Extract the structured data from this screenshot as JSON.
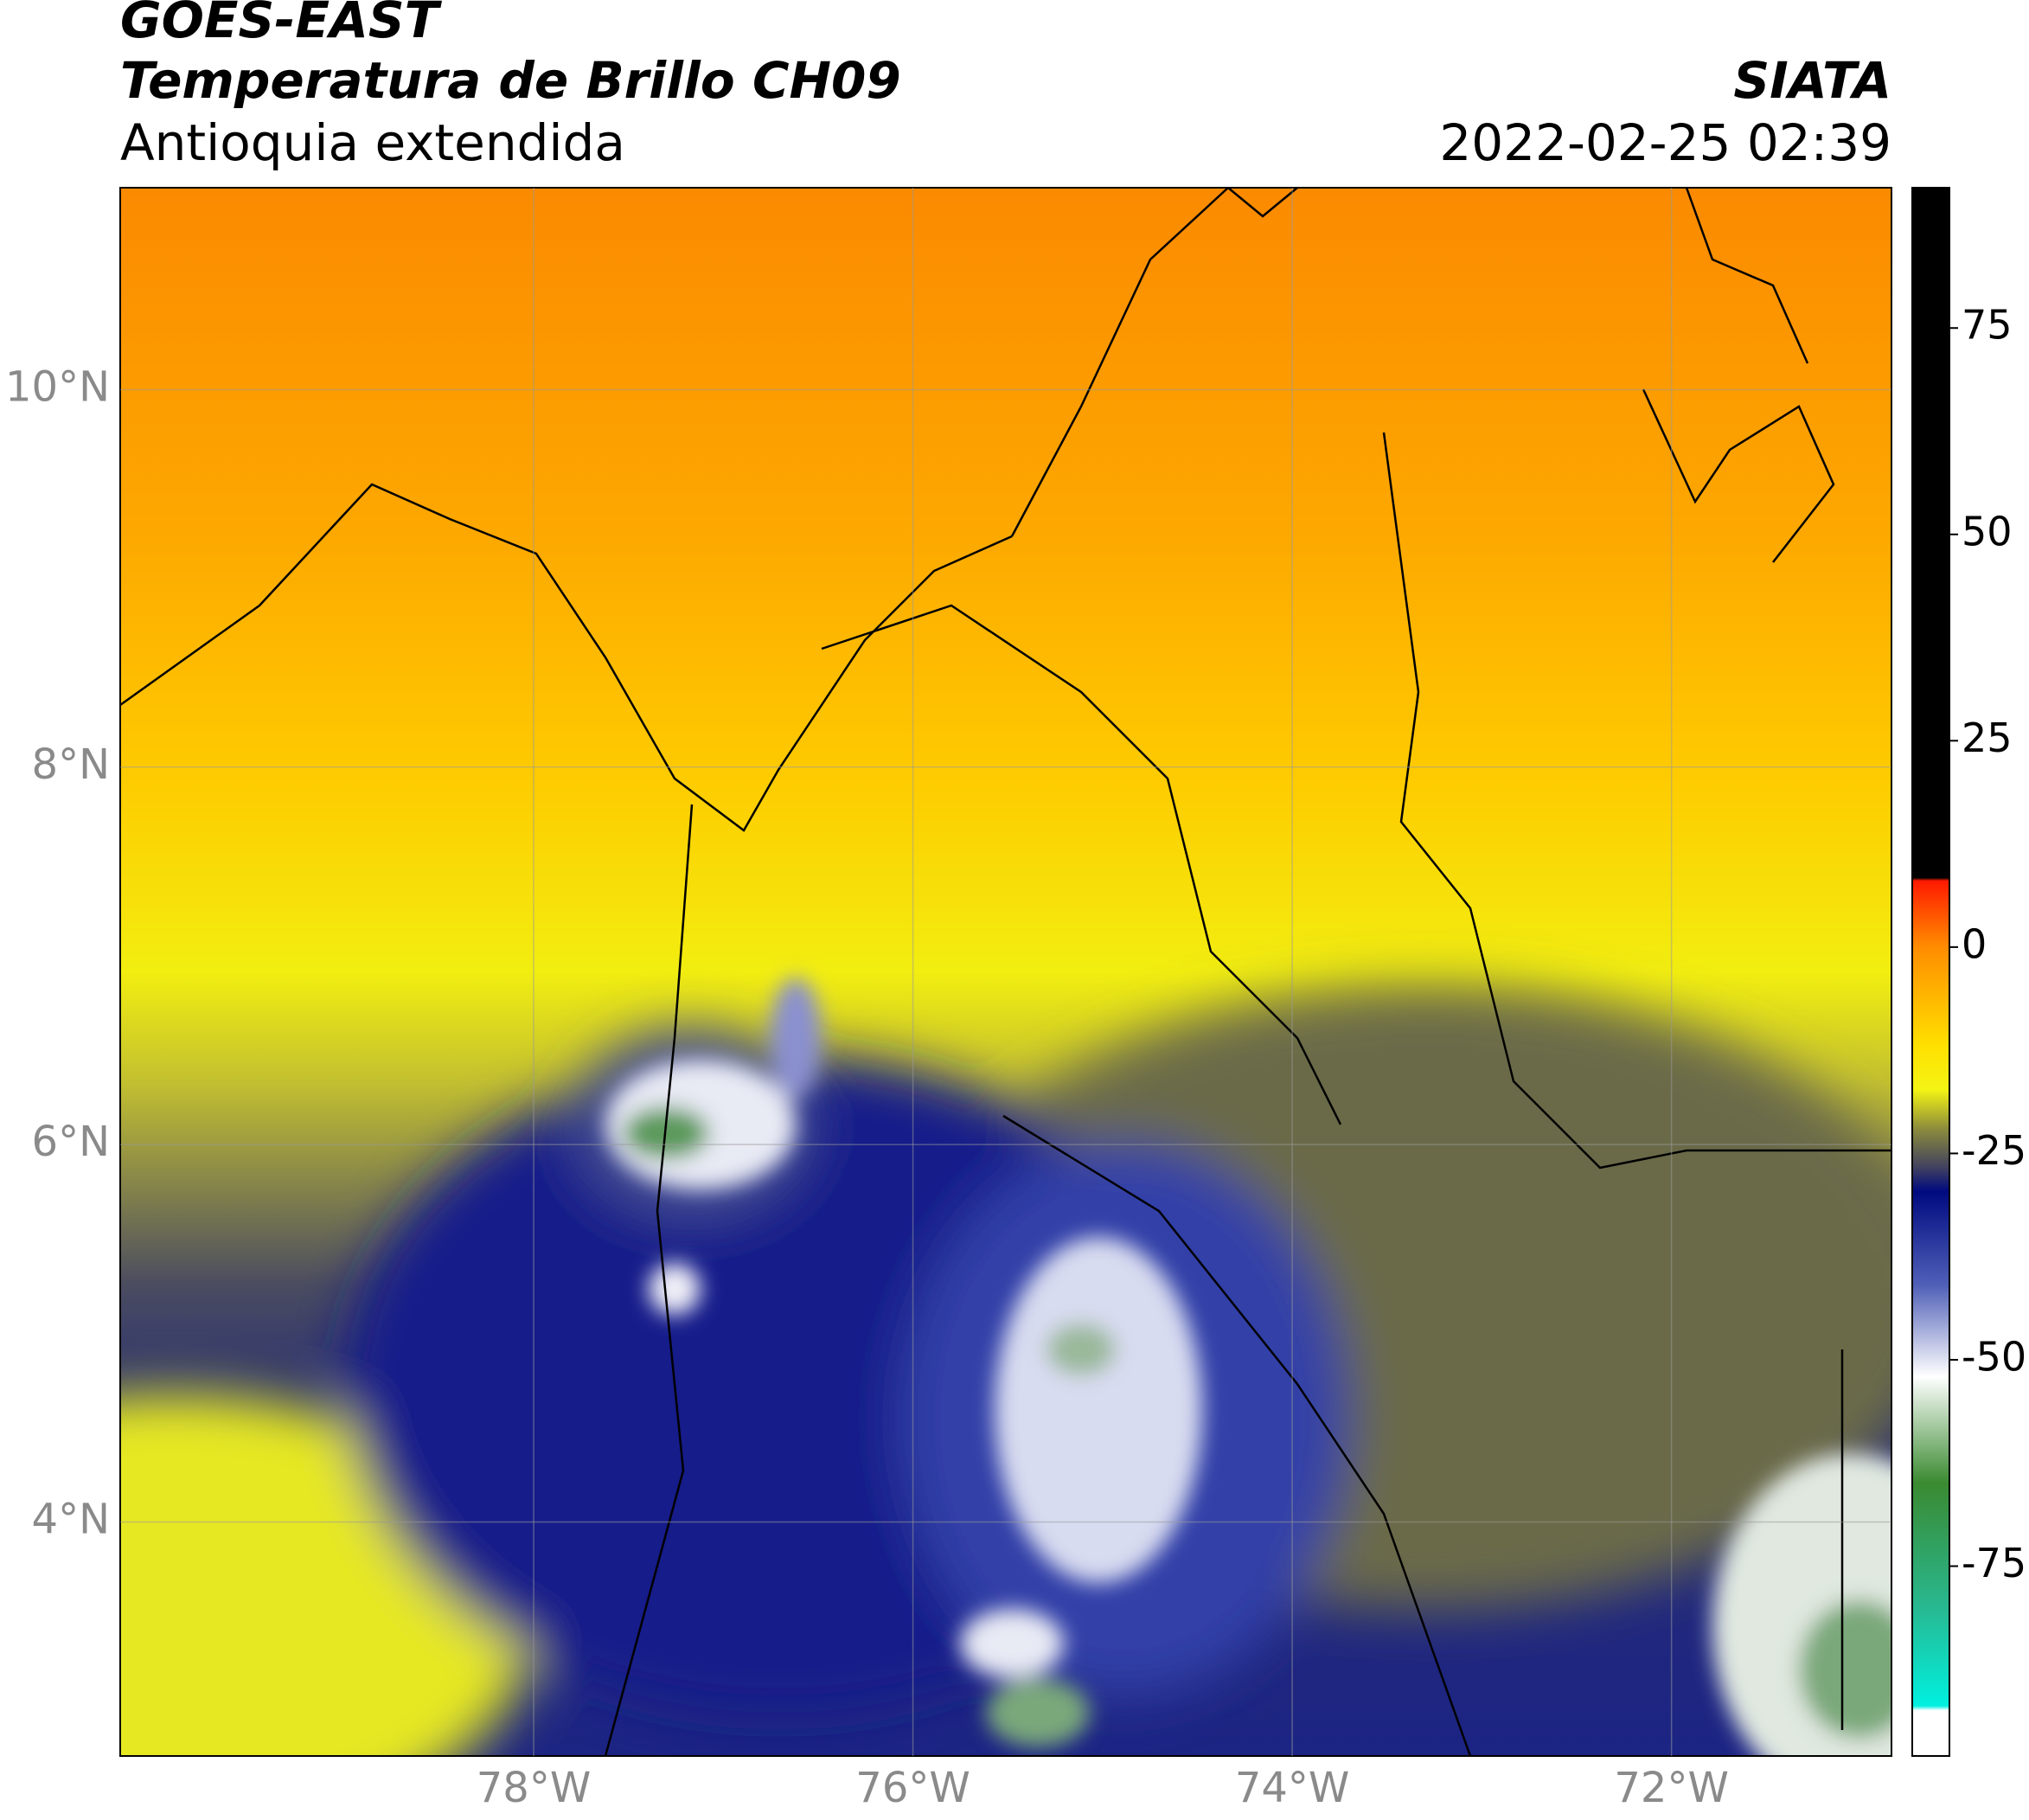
{
  "header": {
    "satellite": "GOES-EAST",
    "product": "Temperatura de Brillo CH09",
    "region": "Antioquia extendida",
    "source": "SIATA",
    "datetime": "2022-02-25 02:39"
  },
  "map": {
    "xlim": [
      -80.18,
      -70.84
    ],
    "ylim": [
      2.76,
      11.07
    ],
    "xticks": [
      {
        "value": -78,
        "label": "78°W"
      },
      {
        "value": -76,
        "label": "76°W"
      },
      {
        "value": -74,
        "label": "74°W"
      },
      {
        "value": -72,
        "label": "72°W"
      }
    ],
    "yticks": [
      {
        "value": 4,
        "label": "4°N"
      },
      {
        "value": 6,
        "label": "6°N"
      },
      {
        "value": 8,
        "label": "8°N"
      },
      {
        "value": 10,
        "label": "10°N"
      }
    ]
  },
  "colorbar": {
    "lim": [
      -98,
      92
    ],
    "ticks": [
      -75,
      -50,
      -25,
      0,
      25,
      50,
      75
    ]
  }
}
